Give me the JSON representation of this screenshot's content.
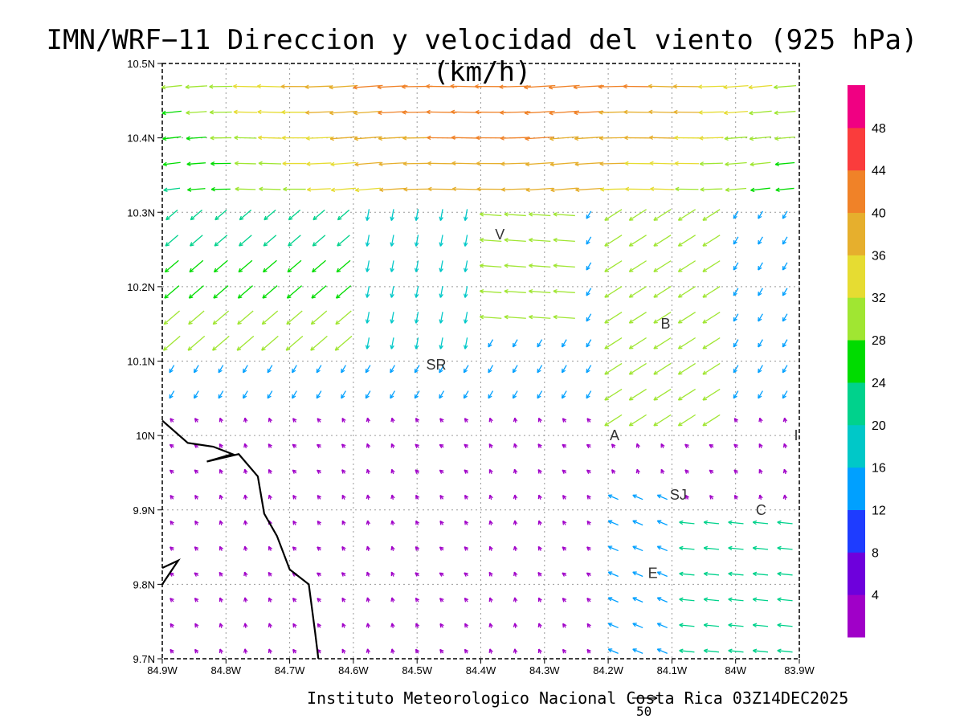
{
  "title": "IMN/WRF−11 Direccion y velocidad del viento (925 hPa)(km/h)",
  "footer": "Instituto Meteorologico Nacional Costa Rica 03Z14DEC2025",
  "reference_vector_label": "50",
  "colorbar": {
    "levels": [
      "4",
      "8",
      "12",
      "16",
      "20",
      "24",
      "28",
      "32",
      "36",
      "40",
      "44",
      "48"
    ],
    "colors": [
      "#a000c8",
      "#6e00dc",
      "#1e3cff",
      "#00a0ff",
      "#00c8c8",
      "#00d28c",
      "#00dc00",
      "#a0e632",
      "#e6dc32",
      "#e6af2d",
      "#f08228",
      "#fa3c3c",
      "#f00082"
    ]
  },
  "map": {
    "x_ticks": [
      "84.9W",
      "84.8W",
      "84.7W",
      "84.6W",
      "84.5W",
      "84.4W",
      "84.3W",
      "84.2W",
      "84.1W",
      "84W",
      "83.9W"
    ],
    "y_ticks": [
      "9.7N",
      "9.8N",
      "9.9N",
      "10N",
      "10.1N",
      "10.2N",
      "10.3N",
      "10.4N",
      "10.5N"
    ],
    "lon_range": [
      -84.9,
      -83.9
    ],
    "lat_range": [
      9.7,
      10.5
    ],
    "place_labels": [
      {
        "text": "V",
        "lon": -84.37,
        "lat": 10.27
      },
      {
        "text": "B",
        "lon": -84.11,
        "lat": 10.15
      },
      {
        "text": "SR",
        "lon": -84.47,
        "lat": 10.095
      },
      {
        "text": "A",
        "lon": -84.19,
        "lat": 10.0
      },
      {
        "text": "SJ",
        "lon": -84.09,
        "lat": 9.92
      },
      {
        "text": "C",
        "lon": -83.96,
        "lat": 9.9
      },
      {
        "text": "E",
        "lon": -84.13,
        "lat": 9.815
      },
      {
        "text": "I",
        "lon": -83.905,
        "lat": 10.0
      }
    ],
    "coastline": [
      [
        -84.9,
        10.02
      ],
      [
        -84.86,
        9.99
      ],
      [
        -84.82,
        9.985
      ],
      [
        -84.79,
        9.975
      ],
      [
        -84.83,
        9.965
      ],
      [
        -84.78,
        9.975
      ],
      [
        -84.75,
        9.945
      ],
      [
        -84.74,
        9.895
      ],
      [
        -84.72,
        9.865
      ],
      [
        -84.7,
        9.82
      ],
      [
        -84.67,
        9.8
      ],
      [
        -84.66,
        9.735
      ],
      [
        -84.655,
        9.7
      ]
    ],
    "coastline2": [
      [
        -84.9,
        9.8
      ],
      [
        -84.875,
        9.832
      ],
      [
        -84.9,
        9.822
      ]
    ]
  }
}
